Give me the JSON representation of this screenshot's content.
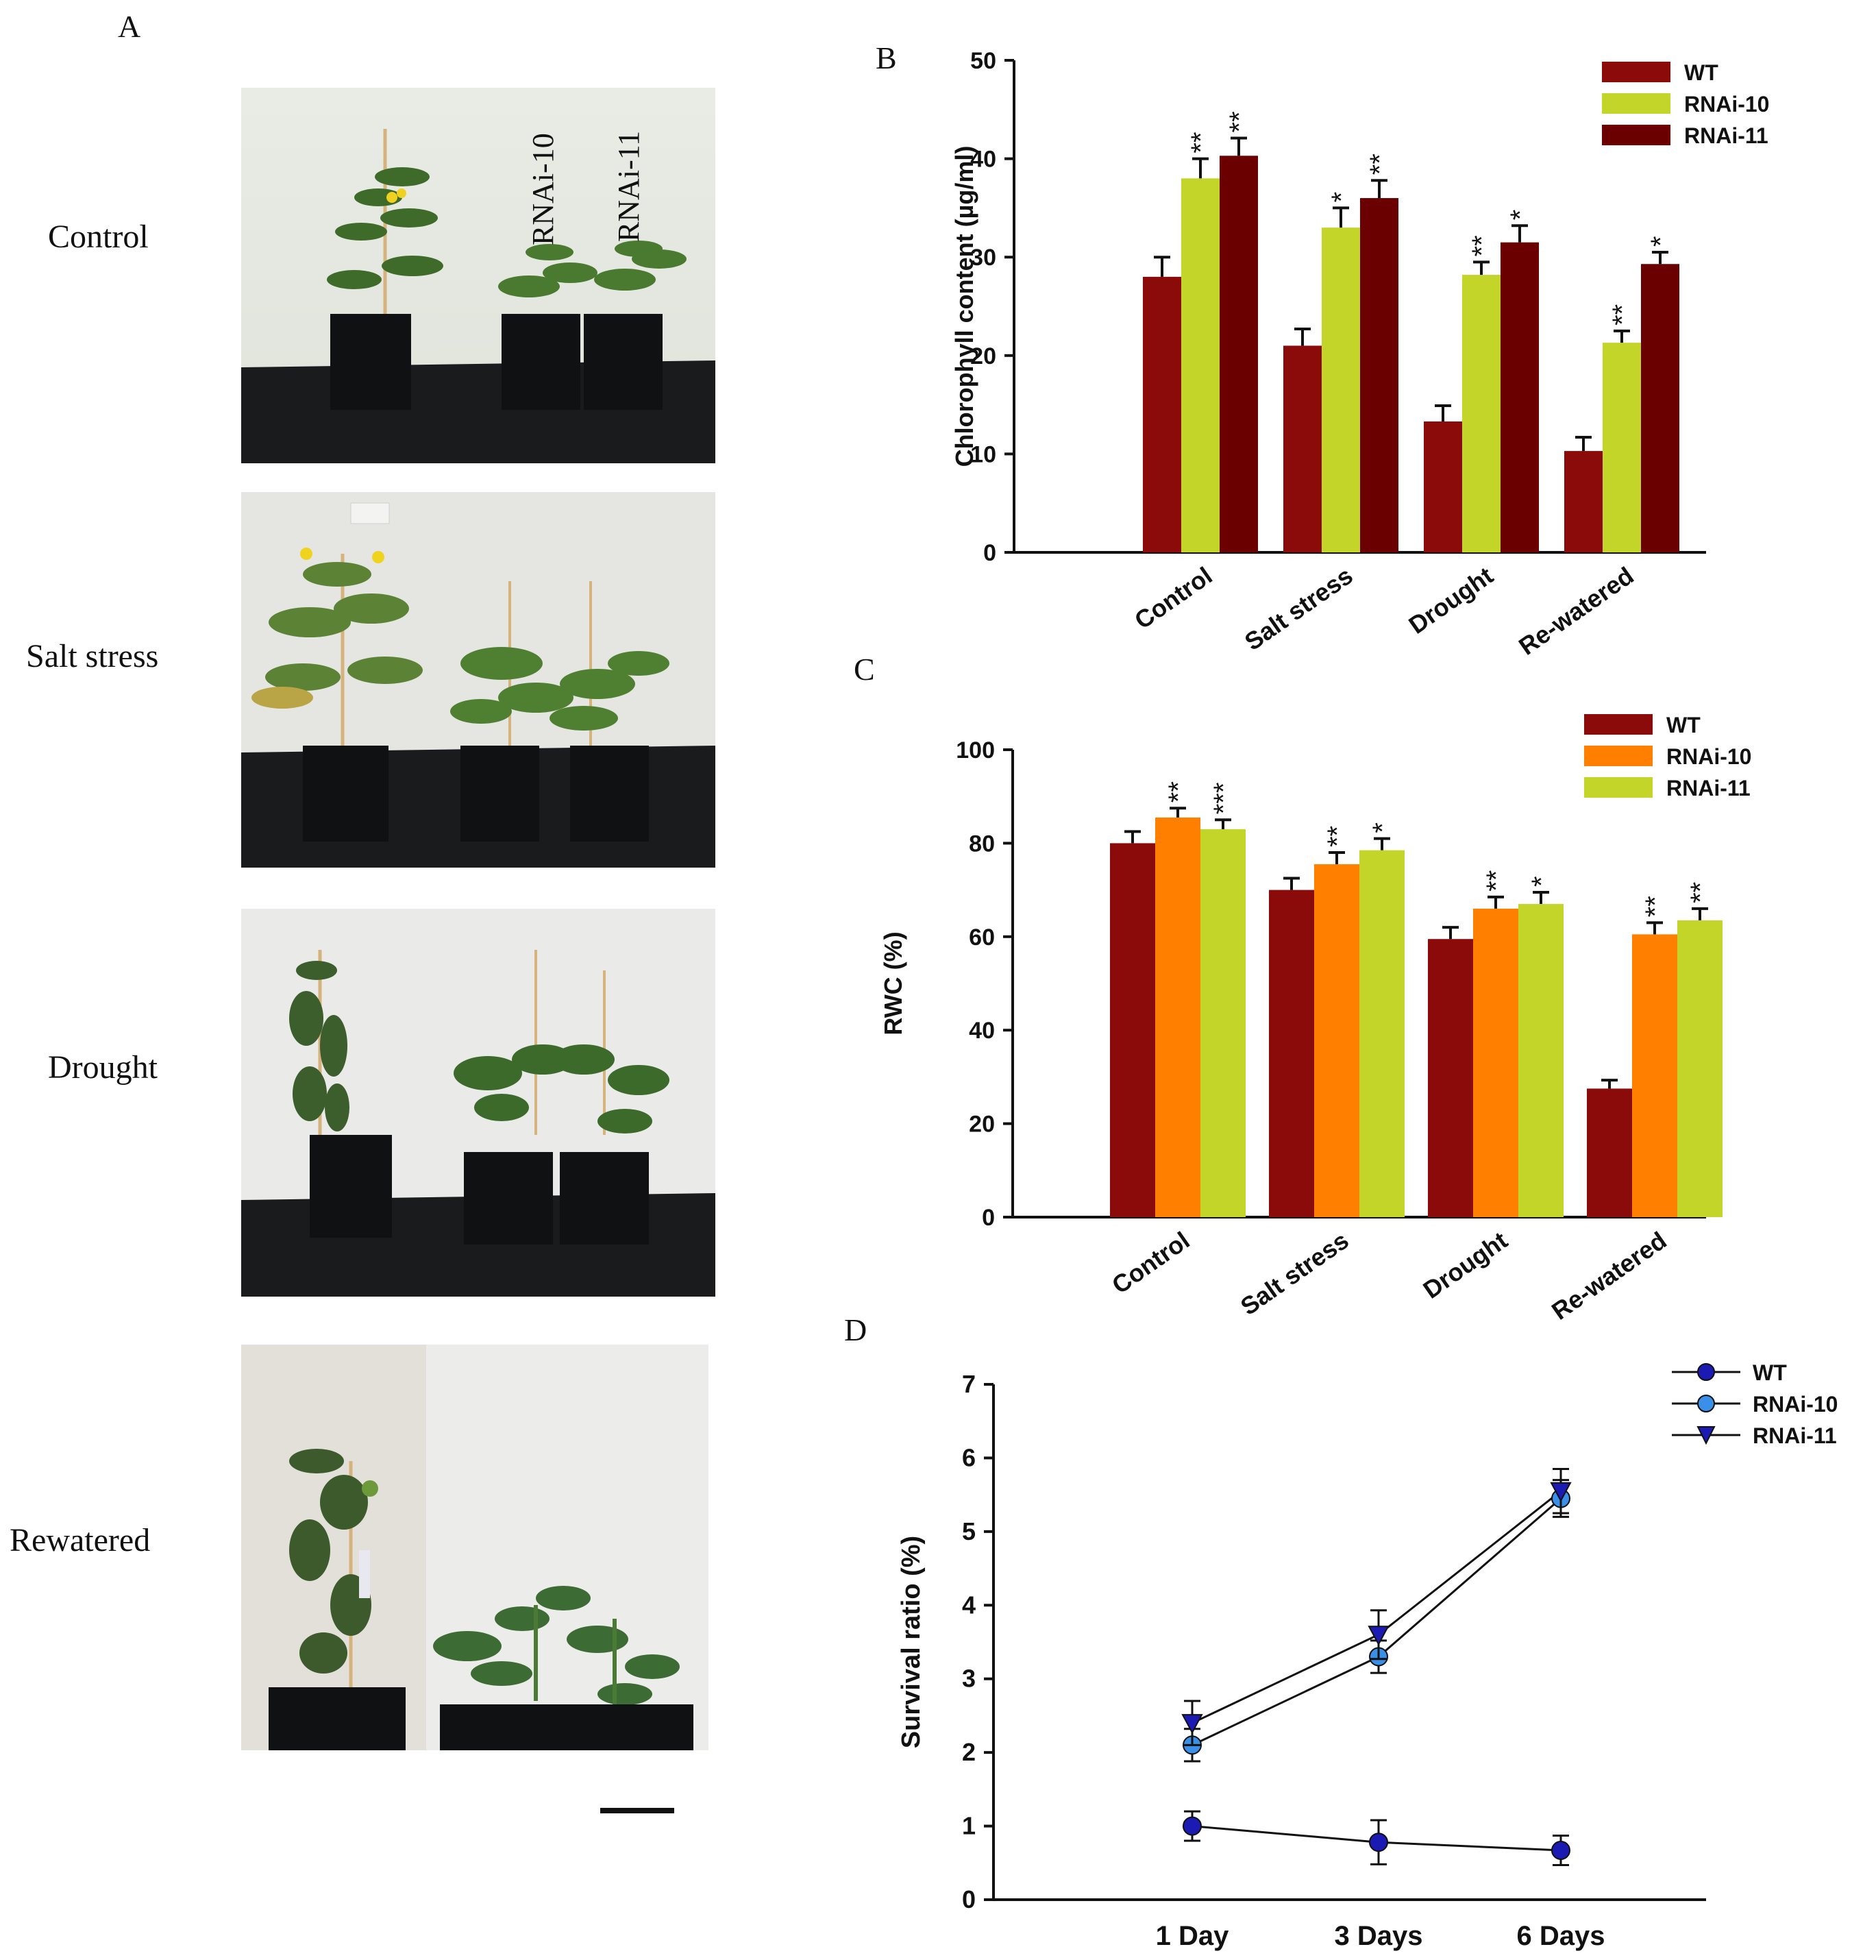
{
  "panel_a": {
    "letter": "A",
    "rows": [
      {
        "label": "Control"
      },
      {
        "label": "Salt stress"
      },
      {
        "label": "Drought"
      },
      {
        "label": "Rewatered"
      }
    ],
    "photo_labels": [
      "RNAi-10",
      "RNAi-11"
    ]
  },
  "chart_data": [
    {
      "id": "B",
      "type": "bar",
      "letter": "B",
      "title": "",
      "xlabel": "",
      "ylabel": "Chlorophyll content (µg/ml)",
      "ylim": [
        0,
        50
      ],
      "yticks": [
        0,
        10,
        20,
        30,
        40,
        50
      ],
      "categories": [
        "Control",
        "Salt stress",
        "Drought",
        "Re-watered"
      ],
      "series": [
        {
          "name": "WT",
          "color": "#8B0A0A",
          "values": [
            28,
            21,
            13.3,
            10.3
          ],
          "errors": [
            2.0,
            1.7,
            1.6,
            1.4
          ],
          "sig": [
            "",
            "",
            "",
            ""
          ]
        },
        {
          "name": "RNAi-10",
          "color": "#C4D52A",
          "values": [
            38,
            33,
            28.2,
            21.3
          ],
          "errors": [
            2.0,
            2.0,
            1.3,
            1.2
          ],
          "sig": [
            "**",
            "*",
            "**",
            "**"
          ]
        },
        {
          "name": "RNAi-11",
          "color": "#6B0000",
          "values": [
            40.3,
            36,
            31.5,
            29.3
          ],
          "errors": [
            1.8,
            1.8,
            1.7,
            1.2
          ],
          "sig": [
            "**",
            "**",
            "*",
            "*"
          ]
        }
      ],
      "legend_position": "top-right"
    },
    {
      "id": "C",
      "type": "bar",
      "letter": "C",
      "title": "",
      "xlabel": "",
      "ylabel": "RWC (%)",
      "ylim": [
        0,
        100
      ],
      "yticks": [
        0,
        20,
        40,
        60,
        80,
        100
      ],
      "categories": [
        "Control",
        "Salt stress",
        "Drought",
        "Re-watered"
      ],
      "series": [
        {
          "name": "WT",
          "color": "#8B0A0A",
          "values": [
            80,
            70,
            59.5,
            27.5
          ],
          "errors": [
            2.5,
            2.5,
            2.5,
            1.8
          ],
          "sig": [
            "",
            "",
            "",
            ""
          ]
        },
        {
          "name": "RNAi-10",
          "color": "#FF8000",
          "values": [
            85.5,
            75.5,
            66,
            60.5
          ],
          "errors": [
            2.0,
            2.5,
            2.5,
            2.5
          ],
          "sig": [
            "**",
            "**",
            "**",
            "**"
          ]
        },
        {
          "name": "RNAi-11",
          "color": "#C4D52A",
          "values": [
            83,
            78.5,
            67,
            63.5
          ],
          "errors": [
            2.0,
            2.5,
            2.5,
            2.5
          ],
          "sig": [
            "***",
            "*",
            "*",
            "**"
          ]
        }
      ],
      "legend_position": "top-right"
    },
    {
      "id": "D",
      "type": "line",
      "letter": "D",
      "title": "",
      "xlabel": "",
      "ylabel": "Survival ratio (%)",
      "ylim": [
        0,
        7
      ],
      "yticks": [
        0,
        1,
        2,
        3,
        4,
        5,
        6,
        7
      ],
      "categories": [
        "1 Day",
        "3 Days",
        "6 Days"
      ],
      "series": [
        {
          "name": "WT",
          "marker": "circle",
          "color": "#1B1BB3",
          "values": [
            1.0,
            0.78,
            0.67
          ],
          "errors": [
            0.2,
            0.3,
            0.2
          ]
        },
        {
          "name": "RNAi-10",
          "marker": "circle",
          "color": "#3A8FE8",
          "values": [
            2.1,
            3.3,
            5.45
          ],
          "errors": [
            0.22,
            0.22,
            0.25
          ]
        },
        {
          "name": "RNAi-11",
          "marker": "triangle-down",
          "color": "#1B1BB3",
          "values": [
            2.4,
            3.6,
            5.55
          ],
          "errors": [
            0.3,
            0.33,
            0.3
          ]
        }
      ],
      "legend_position": "top-right"
    }
  ]
}
